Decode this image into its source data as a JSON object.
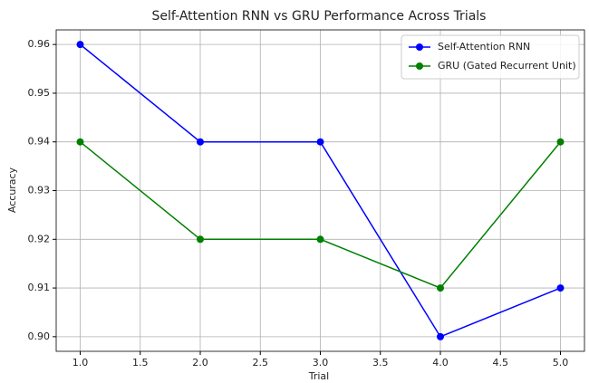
{
  "chart_data": {
    "type": "line",
    "title": "Self-Attention RNN vs GRU Performance Across Trials",
    "x_label": "Trial",
    "y_label": "Accuracy",
    "x": [
      1,
      2,
      3,
      4,
      5
    ],
    "series": [
      {
        "name": "Self-Attention RNN",
        "color": "#0000ff",
        "values": [
          0.96,
          0.94,
          0.94,
          0.9,
          0.91
        ]
      },
      {
        "name": "GRU (Gated Recurrent Unit)",
        "color": "#008000",
        "values": [
          0.94,
          0.92,
          0.92,
          0.91,
          0.94
        ]
      }
    ],
    "xlim": [
      0.8,
      5.2
    ],
    "xticks": [
      {
        "value": 1,
        "label": "1.0"
      },
      {
        "value": 1.5,
        "label": "1.5"
      },
      {
        "value": 2,
        "label": "2.0"
      },
      {
        "value": 2.5,
        "label": "2.5"
      },
      {
        "value": 3,
        "label": "3.0"
      },
      {
        "value": 3.5,
        "label": "3.5"
      },
      {
        "value": 4,
        "label": "4.0"
      },
      {
        "value": 4.5,
        "label": "4.5"
      },
      {
        "value": 5,
        "label": "5.0"
      }
    ],
    "ylim": [
      0.897,
      0.963
    ],
    "yticks": [
      {
        "value": 0.9,
        "label": "0.90"
      },
      0.91,
      0.92,
      0.93,
      0.94,
      0.95,
      0.96
    ],
    "grid": true,
    "legend": "upper right"
  }
}
